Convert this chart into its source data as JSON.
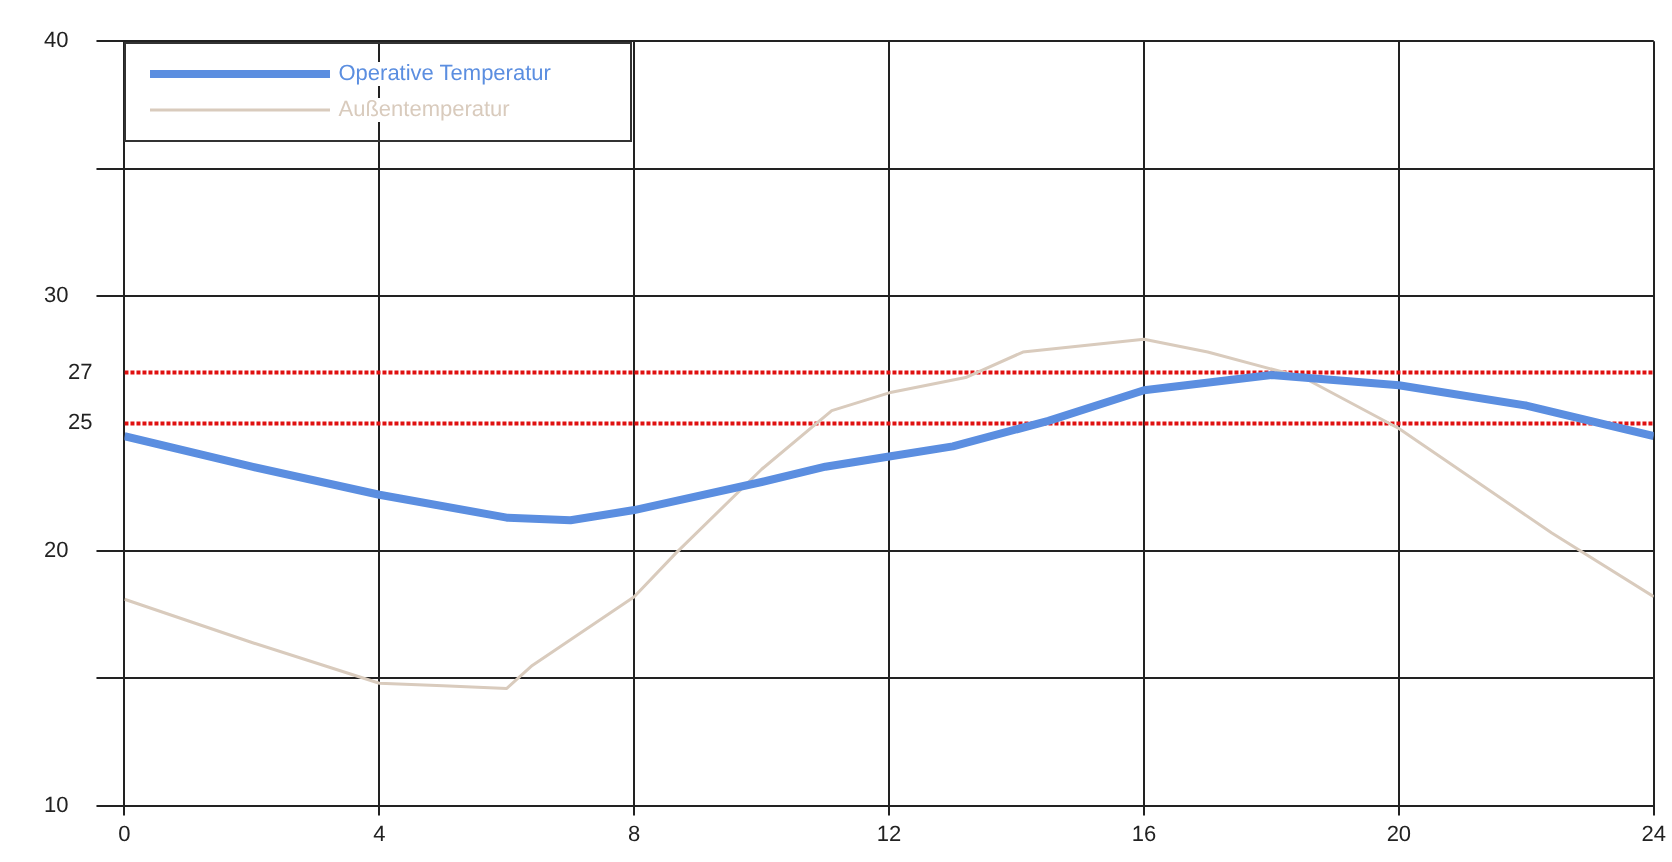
{
  "chart_data": {
    "type": "line",
    "x": [
      0,
      2,
      4,
      6,
      7,
      8,
      10,
      11,
      12,
      13,
      14.5,
      16,
      18,
      20,
      22,
      24
    ],
    "series": [
      {
        "name": "Operative Temperatur",
        "color": "#5b8ee0",
        "values": [
          24.5,
          23.3,
          22.2,
          21.3,
          21.2,
          21.6,
          22.7,
          23.3,
          23.7,
          24.1,
          25.1,
          26.3,
          26.9,
          26.5,
          25.7,
          24.5
        ]
      },
      {
        "name": "Außentemperatur",
        "color": "#d9cbbd",
        "x": [
          0,
          2,
          4,
          5,
          6,
          6.4,
          8,
          8.65,
          10,
          11.1,
          12,
          13.2,
          14.1,
          16,
          17,
          18.5,
          20,
          22.4,
          24
        ],
        "values": [
          18.1,
          16.4,
          14.8,
          14.7,
          14.6,
          15.5,
          18.2,
          19.9,
          23.2,
          25.5,
          26.2,
          26.8,
          27.8,
          28.3,
          27.8,
          26.8,
          24.8,
          20.7,
          18.2
        ]
      }
    ],
    "xlim": [
      0,
      24
    ],
    "xticks": [
      0,
      4,
      8,
      12,
      16,
      20,
      24
    ],
    "ylim": [
      10,
      40
    ],
    "yticks": [
      10,
      {
        "value": 15,
        "label": null
      },
      20,
      30,
      {
        "value": 35,
        "label": null
      },
      40
    ],
    "ref_lines": [
      {
        "axis": "y",
        "value": 25,
        "label": "25",
        "color": "#e01010",
        "line_style": "dotted"
      },
      {
        "axis": "y",
        "value": 27,
        "label": "27",
        "color": "#e01010",
        "line_style": "dotted"
      }
    ],
    "grid": true,
    "legend": "top left",
    "marker": "none"
  }
}
